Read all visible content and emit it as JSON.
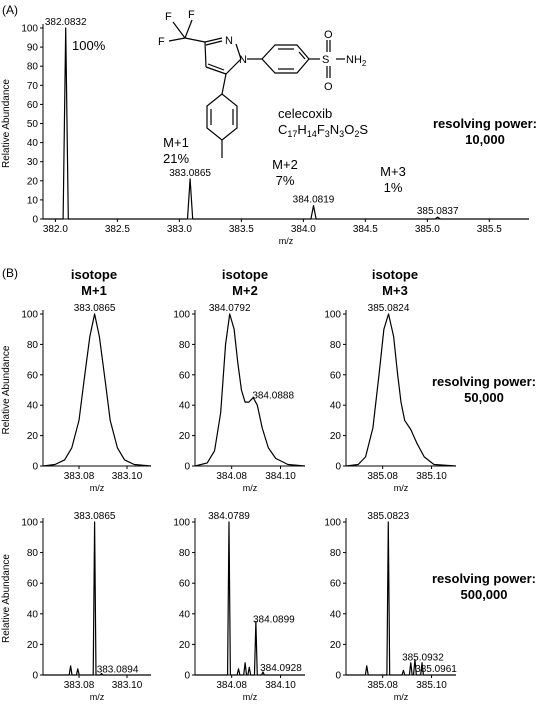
{
  "panel_a": {
    "label": "(A)",
    "compound": {
      "name": "celecoxib",
      "formula_parts": [
        {
          "t": "C",
          "sub": false
        },
        {
          "t": "17",
          "sub": true
        },
        {
          "t": "H",
          "sub": false
        },
        {
          "t": "14",
          "sub": true
        },
        {
          "t": "F",
          "sub": false
        },
        {
          "t": "3",
          "sub": true
        },
        {
          "t": "N",
          "sub": false
        },
        {
          "t": "3",
          "sub": true
        },
        {
          "t": "O",
          "sub": false
        },
        {
          "t": "2",
          "sub": true
        },
        {
          "t": "S",
          "sub": false
        }
      ],
      "atom_labels": {
        "F1": "F",
        "F2": "F",
        "F3": "F",
        "N1": "N",
        "N2": "N",
        "S": "S",
        "O1": "O",
        "O2": "O",
        "NH2": "NH",
        "NH2_sub": "2"
      }
    },
    "resolving_power": {
      "line1": "resolving power:",
      "line2": "10,000"
    },
    "isotope_labels": [
      {
        "name": "",
        "pct": "100%"
      },
      {
        "name": "M+1",
        "pct": "21%"
      },
      {
        "name": "M+2",
        "pct": "7%"
      },
      {
        "name": "M+3",
        "pct": "1%"
      }
    ]
  },
  "panel_b": {
    "label": "(B)",
    "rows": [
      {
        "resolving_power": {
          "line1": "resolving power:",
          "line2": "50,000"
        }
      },
      {
        "resolving_power": {
          "line1": "resolving power:",
          "line2": "500,000"
        }
      }
    ],
    "column_titles": [
      {
        "line1": "isotope",
        "line2": "M+1"
      },
      {
        "line1": "isotope",
        "line2": "M+2"
      },
      {
        "line1": "isotope",
        "line2": "M+3"
      }
    ]
  },
  "chart_data": [
    {
      "id": "A",
      "type": "line",
      "xlabel": "m/z",
      "ylabel": "Relative Abundance",
      "xlim": [
        381.9,
        385.82
      ],
      "ylim": [
        0,
        100
      ],
      "xticks": [
        "382.0",
        "382.5",
        "383.0",
        "383.5",
        "384.0",
        "384.5",
        "385.0",
        "385.5"
      ],
      "yticks": [
        "0",
        "10",
        "20",
        "30",
        "40",
        "50",
        "60",
        "70",
        "80",
        "90",
        "100"
      ],
      "peaks": [
        {
          "mz": 382.0832,
          "h": 100,
          "label": "382.0832"
        },
        {
          "mz": 383.0865,
          "h": 21,
          "label": "383.0865"
        },
        {
          "mz": 384.0819,
          "h": 7,
          "label": "384.0819"
        },
        {
          "mz": 385.0837,
          "h": 1,
          "label": "385.0837"
        }
      ]
    },
    {
      "id": "B1-M1",
      "type": "line",
      "xlabel": "m/z",
      "ylabel": "Relative Abundance",
      "xlim": [
        383.065,
        383.11
      ],
      "ylim": [
        0,
        100
      ],
      "xticks": [
        "383.08",
        "383.10"
      ],
      "yticks": [
        "0",
        "20",
        "40",
        "60",
        "80",
        "100"
      ],
      "x": [
        383.065,
        383.07,
        383.074,
        383.077,
        383.08,
        383.082,
        383.0845,
        383.0865,
        383.0885,
        383.091,
        383.093,
        383.096,
        383.099,
        383.103,
        383.11
      ],
      "y": [
        0,
        1,
        4,
        12,
        30,
        55,
        85,
        100,
        85,
        55,
        30,
        12,
        4,
        1,
        0
      ],
      "peak_labels": [
        {
          "mz": 383.0865,
          "h": 100,
          "label": "383.0865"
        }
      ]
    },
    {
      "id": "B1-M2",
      "type": "line",
      "xlabel": "m/z",
      "ylabel": "",
      "xlim": [
        384.065,
        384.11
      ],
      "ylim": [
        0,
        100
      ],
      "xticks": [
        "384.08",
        "384.10"
      ],
      "yticks": [
        "0",
        "20",
        "40",
        "60",
        "80",
        "100"
      ],
      "x": [
        384.065,
        384.07,
        384.073,
        384.0755,
        384.0775,
        384.0792,
        384.081,
        384.0825,
        384.084,
        384.0855,
        384.087,
        384.0888,
        384.0905,
        384.0925,
        384.095,
        384.098,
        384.103,
        384.11
      ],
      "y": [
        0,
        2,
        10,
        35,
        80,
        100,
        90,
        68,
        50,
        42,
        42,
        45,
        40,
        25,
        12,
        5,
        1,
        0
      ],
      "peak_labels": [
        {
          "mz": 384.0792,
          "h": 100,
          "label": "384.0792"
        },
        {
          "mz": 384.0888,
          "h": 45,
          "label": "384.0888"
        }
      ]
    },
    {
      "id": "B1-M3",
      "type": "line",
      "xlabel": "m/z",
      "ylabel": "",
      "xlim": [
        385.065,
        385.11
      ],
      "ylim": [
        0,
        100
      ],
      "xticks": [
        "385.08",
        "385.10"
      ],
      "yticks": [
        "0",
        "20",
        "40",
        "60",
        "80",
        "100"
      ],
      "x": [
        385.065,
        385.07,
        385.073,
        385.076,
        385.0785,
        385.0805,
        385.0824,
        385.0845,
        385.086,
        385.0875,
        385.089,
        385.0915,
        385.094,
        385.097,
        385.101,
        385.11
      ],
      "y": [
        0,
        1,
        6,
        25,
        60,
        90,
        100,
        85,
        62,
        42,
        30,
        24,
        15,
        6,
        1,
        0
      ],
      "peak_labels": [
        {
          "mz": 385.0824,
          "h": 100,
          "label": "385.0824"
        }
      ]
    },
    {
      "id": "B2-M1",
      "type": "line",
      "xlabel": "m/z",
      "ylabel": "Relative Abundance",
      "xlim": [
        383.065,
        383.11
      ],
      "ylim": [
        0,
        100
      ],
      "xticks": [
        "383.08",
        "383.10"
      ],
      "yticks": [
        "0",
        "20",
        "40",
        "60",
        "80",
        "100"
      ],
      "peaks": [
        {
          "mz": 383.0765,
          "h": 6
        },
        {
          "mz": 383.0795,
          "h": 4
        },
        {
          "mz": 383.0865,
          "h": 100
        },
        {
          "mz": 383.0894,
          "h": 1
        }
      ],
      "peak_labels": [
        {
          "mz": 383.0865,
          "h": 100,
          "label": "383.0865"
        },
        {
          "mz": 383.0894,
          "h": 1,
          "label": "383.0894"
        }
      ]
    },
    {
      "id": "B2-M2",
      "type": "line",
      "xlabel": "m/z",
      "ylabel": "",
      "xlim": [
        384.065,
        384.11
      ],
      "ylim": [
        0,
        100
      ],
      "xticks": [
        "384.08",
        "384.10"
      ],
      "yticks": [
        "0",
        "20",
        "40",
        "60",
        "80",
        "100"
      ],
      "peaks": [
        {
          "mz": 384.0789,
          "h": 100
        },
        {
          "mz": 384.0828,
          "h": 4
        },
        {
          "mz": 384.0855,
          "h": 8
        },
        {
          "mz": 384.0872,
          "h": 5
        },
        {
          "mz": 384.0899,
          "h": 35
        },
        {
          "mz": 384.0928,
          "h": 2
        }
      ],
      "peak_labels": [
        {
          "mz": 384.0789,
          "h": 100,
          "label": "384.0789"
        },
        {
          "mz": 384.0899,
          "h": 35,
          "label": "384.0899"
        },
        {
          "mz": 384.0928,
          "h": 2,
          "label": "384.0928"
        }
      ]
    },
    {
      "id": "B2-M3",
      "type": "line",
      "xlabel": "m/z",
      "ylabel": "",
      "xlim": [
        385.065,
        385.11
      ],
      "ylim": [
        0,
        100
      ],
      "xticks": [
        "385.08",
        "385.10"
      ],
      "yticks": [
        "0",
        "20",
        "40",
        "60",
        "80",
        "100"
      ],
      "peaks": [
        {
          "mz": 385.0735,
          "h": 6
        },
        {
          "mz": 385.0823,
          "h": 100
        },
        {
          "mz": 385.0885,
          "h": 3
        },
        {
          "mz": 385.0915,
          "h": 8
        },
        {
          "mz": 385.0932,
          "h": 10
        },
        {
          "mz": 385.0961,
          "h": 8
        }
      ],
      "peak_labels": [
        {
          "mz": 385.0823,
          "h": 100,
          "label": "385.0823"
        },
        {
          "mz": 385.0932,
          "h": 10,
          "label": "385.0932"
        },
        {
          "mz": 385.0961,
          "h": 8,
          "label": "385.0961"
        }
      ]
    }
  ]
}
